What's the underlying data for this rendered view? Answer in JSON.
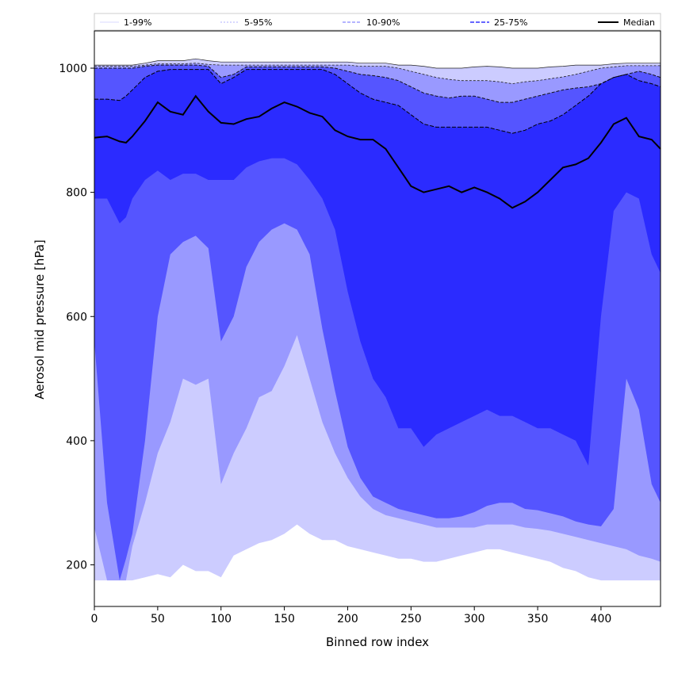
{
  "chart_data": {
    "type": "area",
    "title": "",
    "xlabel": "Binned row index",
    "ylabel": "Aerosol mid pressure [hPa]",
    "xlim": [
      0,
      447
    ],
    "ylim": [
      133,
      1060
    ],
    "x_ticks": [
      0,
      50,
      100,
      150,
      200,
      250,
      300,
      350,
      400
    ],
    "y_ticks": [
      200,
      400,
      600,
      800,
      1000
    ],
    "grid": false,
    "legend_position": "top, spanning full width",
    "x": [
      0,
      10,
      20,
      25,
      30,
      40,
      50,
      60,
      70,
      80,
      90,
      100,
      110,
      120,
      130,
      140,
      150,
      160,
      170,
      180,
      190,
      200,
      210,
      220,
      230,
      240,
      250,
      260,
      270,
      280,
      290,
      300,
      310,
      320,
      330,
      340,
      350,
      360,
      370,
      380,
      390,
      400,
      410,
      420,
      430,
      440,
      447
    ],
    "series": [
      {
        "name": "1-99%",
        "color": "#ccccff",
        "lower": [
          175,
          175,
          175,
          175,
          175,
          180,
          185,
          180,
          200,
          190,
          190,
          180,
          215,
          225,
          235,
          240,
          250,
          265,
          250,
          240,
          240,
          230,
          225,
          220,
          215,
          210,
          210,
          205,
          205,
          210,
          215,
          220,
          225,
          225,
          220,
          215,
          210,
          205,
          195,
          190,
          180,
          175,
          175,
          175,
          175,
          175,
          175
        ],
        "upper": [
          1005,
          1005,
          1005,
          1005,
          1005,
          1008,
          1012,
          1012,
          1012,
          1015,
          1012,
          1010,
          1010,
          1010,
          1010,
          1010,
          1010,
          1010,
          1010,
          1010,
          1010,
          1010,
          1008,
          1008,
          1008,
          1005,
          1005,
          1003,
          1000,
          1000,
          1000,
          1002,
          1003,
          1002,
          1000,
          1000,
          1000,
          1002,
          1003,
          1005,
          1005,
          1005,
          1007,
          1008,
          1008,
          1008,
          1008
        ]
      },
      {
        "name": "5-95%",
        "color": "#9999ff",
        "lower": [
          260,
          175,
          175,
          175,
          230,
          300,
          380,
          430,
          500,
          490,
          500,
          330,
          380,
          420,
          470,
          480,
          520,
          570,
          500,
          430,
          380,
          340,
          310,
          290,
          280,
          275,
          270,
          265,
          260,
          260,
          260,
          260,
          265,
          265,
          265,
          260,
          258,
          255,
          250,
          245,
          240,
          235,
          230,
          225,
          215,
          210,
          205
        ],
        "upper": [
          1003,
          1003,
          1003,
          1003,
          1003,
          1005,
          1007,
          1007,
          1007,
          1008,
          1006,
          1005,
          1005,
          1005,
          1005,
          1005,
          1005,
          1005,
          1005,
          1005,
          1005,
          1005,
          1003,
          1003,
          1003,
          1000,
          995,
          990,
          985,
          982,
          980,
          980,
          980,
          978,
          975,
          978,
          980,
          983,
          986,
          990,
          995,
          1000,
          1002,
          1004,
          1004,
          1004,
          1004
        ]
      },
      {
        "name": "10-90%",
        "color": "#5555ff",
        "lower": [
          560,
          300,
          175,
          210,
          250,
          400,
          600,
          700,
          720,
          730,
          710,
          560,
          600,
          680,
          720,
          740,
          750,
          740,
          700,
          580,
          480,
          390,
          340,
          310,
          300,
          290,
          285,
          280,
          275,
          275,
          278,
          285,
          295,
          300,
          300,
          290,
          288,
          283,
          278,
          270,
          265,
          262,
          290,
          500,
          450,
          330,
          300
        ],
        "upper": [
          1000,
          1000,
          1000,
          1000,
          1000,
          1003,
          1005,
          1005,
          1005,
          1005,
          1003,
          985,
          990,
          1002,
          1002,
          1002,
          1002,
          1002,
          1002,
          1002,
          1000,
          995,
          990,
          988,
          985,
          980,
          970,
          960,
          955,
          952,
          955,
          955,
          950,
          945,
          945,
          950,
          955,
          960,
          965,
          968,
          970,
          975,
          985,
          990,
          995,
          990,
          985
        ]
      },
      {
        "name": "25-75%",
        "color": "#2b2bff",
        "lower": [
          790,
          790,
          750,
          760,
          790,
          820,
          835,
          820,
          830,
          830,
          820,
          820,
          820,
          840,
          850,
          855,
          855,
          845,
          820,
          790,
          740,
          640,
          560,
          500,
          470,
          420,
          420,
          390,
          410,
          420,
          430,
          440,
          450,
          440,
          440,
          430,
          420,
          420,
          410,
          400,
          360,
          600,
          770,
          800,
          790,
          700,
          670
        ]
      },
      {
        "name": "",
        "color": "#2b2bff",
        "upper": [
          950,
          950,
          948,
          955,
          965,
          985,
          995,
          998,
          998,
          998,
          998,
          975,
          985,
          998,
          998,
          998,
          998,
          998,
          998,
          998,
          990,
          975,
          960,
          950,
          945,
          940,
          925,
          910,
          905,
          905,
          905,
          905,
          905,
          900,
          895,
          900,
          910,
          915,
          925,
          940,
          955,
          975,
          985,
          990,
          980,
          975,
          970
        ]
      },
      {
        "name": "Median",
        "color": "#000000",
        "values": [
          888,
          890,
          882,
          880,
          890,
          915,
          945,
          930,
          925,
          955,
          930,
          912,
          910,
          918,
          922,
          935,
          945,
          938,
          928,
          922,
          900,
          890,
          885,
          885,
          870,
          840,
          810,
          800,
          805,
          810,
          800,
          808,
          800,
          790,
          775,
          785,
          800,
          820,
          840,
          845,
          855,
          880,
          910,
          920,
          890,
          885,
          870
        ]
      }
    ]
  }
}
